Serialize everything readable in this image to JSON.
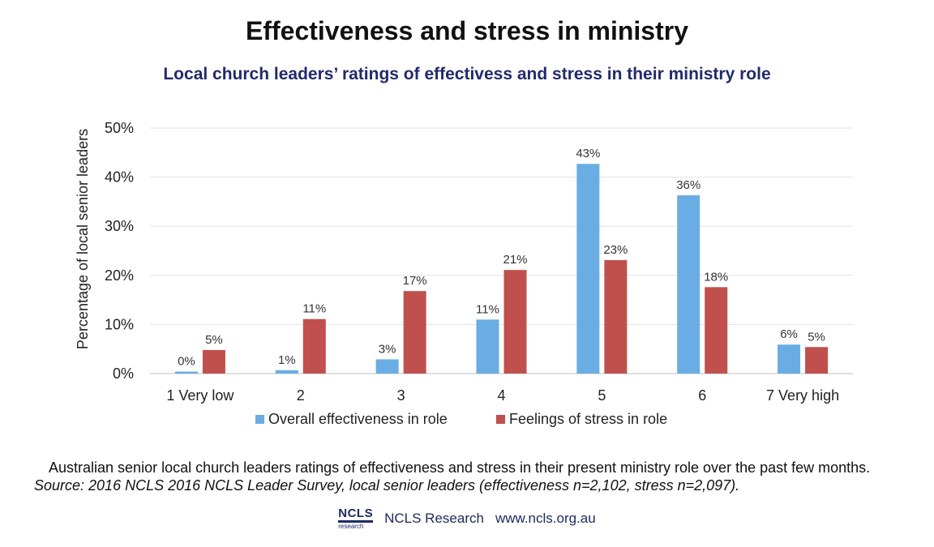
{
  "title": "Effectiveness and stress in ministry",
  "subtitle": "Local church leaders’ ratings of effectivess and stress in their ministry role",
  "caption": {
    "text": "Australian senior local church leaders ratings of effectiveness and stress in their present ministry role over the past few months.",
    "source": "Source: 2016 NCLS 2016 NCLS Leader Survey, local senior leaders (effectiveness n=2,102, stress n=2,097)."
  },
  "footer": {
    "logo_text": "NCLS",
    "logo_sub": "research",
    "org": "NCLS Research",
    "url": "www.ncls.org.au"
  },
  "chart_data": {
    "type": "bar",
    "categories": [
      "1 Very low",
      "2",
      "3",
      "4",
      "5",
      "6",
      "7 Very high"
    ],
    "series": [
      {
        "name": "Overall effectiveness in role",
        "values": [
          0.4,
          0.7,
          2.9,
          11.0,
          42.7,
          36.3,
          5.9
        ],
        "labels": [
          "0%",
          "1%",
          "3%",
          "11%",
          "43%",
          "36%",
          "6%"
        ],
        "color": "#6aade4"
      },
      {
        "name": "Feelings of stress in role",
        "values": [
          4.8,
          11.1,
          16.8,
          21.1,
          23.1,
          17.6,
          5.4
        ],
        "labels": [
          "5%",
          "11%",
          "17%",
          "21%",
          "23%",
          "18%",
          "5%"
        ],
        "color": "#c0504d"
      }
    ],
    "ylabel": "Percentage of local senior leaders",
    "yticks": [
      "0%",
      "10%",
      "20%",
      "30%",
      "40%",
      "50%"
    ],
    "ylim": [
      0,
      50
    ],
    "grid": true,
    "legend": "bottom"
  }
}
